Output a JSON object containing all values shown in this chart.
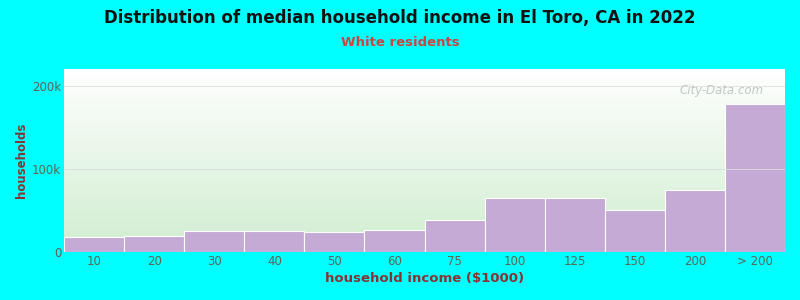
{
  "title": "Distribution of median household income in El Toro, CA in 2022",
  "subtitle": "White residents",
  "xlabel": "household income ($1000)",
  "ylabel": "households",
  "background_color": "#00FFFF",
  "plot_bg_top": "#ffffff",
  "plot_bg_bottom": "#d0edd0",
  "bar_color": "#c4aad4",
  "bar_edge_color": "#ffffff",
  "title_color": "#111111",
  "subtitle_color": "#cc4444",
  "axis_label_color": "#883333",
  "tick_color": "#556655",
  "categories": [
    "10",
    "20",
    "30",
    "40",
    "50",
    "60",
    "75",
    "100",
    "125",
    "150",
    "200",
    "> 200"
  ],
  "values": [
    18000,
    19000,
    25000,
    25000,
    24000,
    26000,
    38000,
    65000,
    65000,
    50000,
    75000,
    178000
  ],
  "ylim": [
    0,
    220000
  ],
  "ytick_positions": [
    0,
    100000,
    200000
  ],
  "ytick_labels": [
    "0",
    "100k",
    "200k"
  ],
  "grid_color": "#dddddd",
  "watermark": "City-Data.com"
}
